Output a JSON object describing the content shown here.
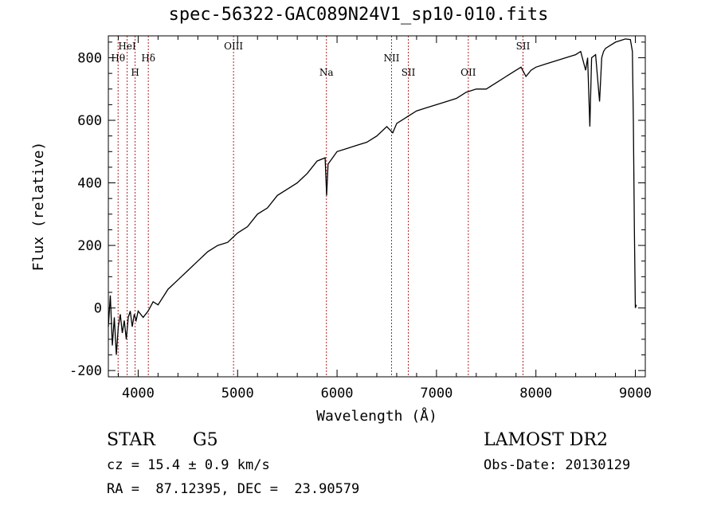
{
  "chart_data": {
    "type": "line",
    "title": "spec-56322-GAC089N24V1_sp10-010.fits",
    "xlabel": "Wavelength (Å)",
    "ylabel": "Flux (relative)",
    "xlim": [
      3700,
      9100
    ],
    "ylim": [
      -220,
      870
    ],
    "x_ticks": [
      4000,
      5000,
      6000,
      7000,
      8000,
      9000
    ],
    "y_ticks": [
      -200,
      0,
      200,
      400,
      600,
      800
    ],
    "line_color": "#000000",
    "marker_color": "#b22222",
    "spectral_lines": [
      {
        "name": "Hθ",
        "wavelength": 3798,
        "row": 2
      },
      {
        "name": "HeI",
        "wavelength": 3889,
        "row": 1
      },
      {
        "name": "H",
        "wavelength": 3969,
        "row": 3
      },
      {
        "name": "Hδ",
        "wavelength": 4102,
        "row": 2
      },
      {
        "name": "OIII",
        "wavelength": 4959,
        "row": 1
      },
      {
        "name": "Na",
        "wavelength": 5893,
        "row": 3
      },
      {
        "name": "NII",
        "wavelength": 6548,
        "row": 2
      },
      {
        "name": "SII",
        "wavelength": 6717,
        "row": 3
      },
      {
        "name": "OII",
        "wavelength": 7320,
        "row": 3
      },
      {
        "name": "SII",
        "wavelength": 7870,
        "row": 1
      }
    ],
    "series": [
      {
        "name": "flux",
        "x": [
          3700,
          3720,
          3740,
          3760,
          3780,
          3800,
          3820,
          3840,
          3860,
          3880,
          3900,
          3920,
          3940,
          3960,
          3980,
          4000,
          4050,
          4100,
          4150,
          4200,
          4300,
          4400,
          4500,
          4600,
          4700,
          4800,
          4900,
          5000,
          5100,
          5200,
          5300,
          5400,
          5500,
          5600,
          5700,
          5800,
          5880,
          5895,
          5910,
          6000,
          6100,
          6200,
          6300,
          6400,
          6500,
          6560,
          6600,
          6700,
          6800,
          6900,
          7000,
          7100,
          7200,
          7300,
          7400,
          7500,
          7600,
          7700,
          7800,
          7850,
          7900,
          7950,
          8000,
          8100,
          8200,
          8300,
          8400,
          8450,
          8500,
          8520,
          8542,
          8560,
          8600,
          8640,
          8662,
          8680,
          8700,
          8750,
          8800,
          8850,
          8900,
          8950,
          8970,
          8980,
          8990,
          9000,
          9010
        ],
        "values": [
          -60,
          40,
          -120,
          -30,
          -150,
          -60,
          -20,
          -80,
          -40,
          -100,
          -30,
          -10,
          -60,
          -20,
          -40,
          -10,
          -30,
          -10,
          20,
          10,
          60,
          90,
          120,
          150,
          180,
          200,
          210,
          240,
          260,
          300,
          320,
          360,
          380,
          400,
          430,
          470,
          480,
          360,
          460,
          500,
          510,
          520,
          530,
          550,
          580,
          560,
          590,
          610,
          630,
          640,
          650,
          660,
          670,
          690,
          700,
          700,
          720,
          740,
          760,
          770,
          740,
          760,
          770,
          780,
          790,
          800,
          810,
          820,
          760,
          800,
          580,
          800,
          810,
          660,
          800,
          820,
          830,
          840,
          850,
          855,
          860,
          858,
          820,
          600,
          250,
          0,
          10
        ]
      }
    ]
  },
  "info": {
    "class_label": "STAR",
    "subclass": "G5",
    "survey": "LAMOST DR2",
    "cz": "cz = 15.4 ± 0.9 km/s",
    "obs_date": "Obs-Date: 20130129",
    "coords": "RA =  87.12395, DEC =  23.90579"
  }
}
